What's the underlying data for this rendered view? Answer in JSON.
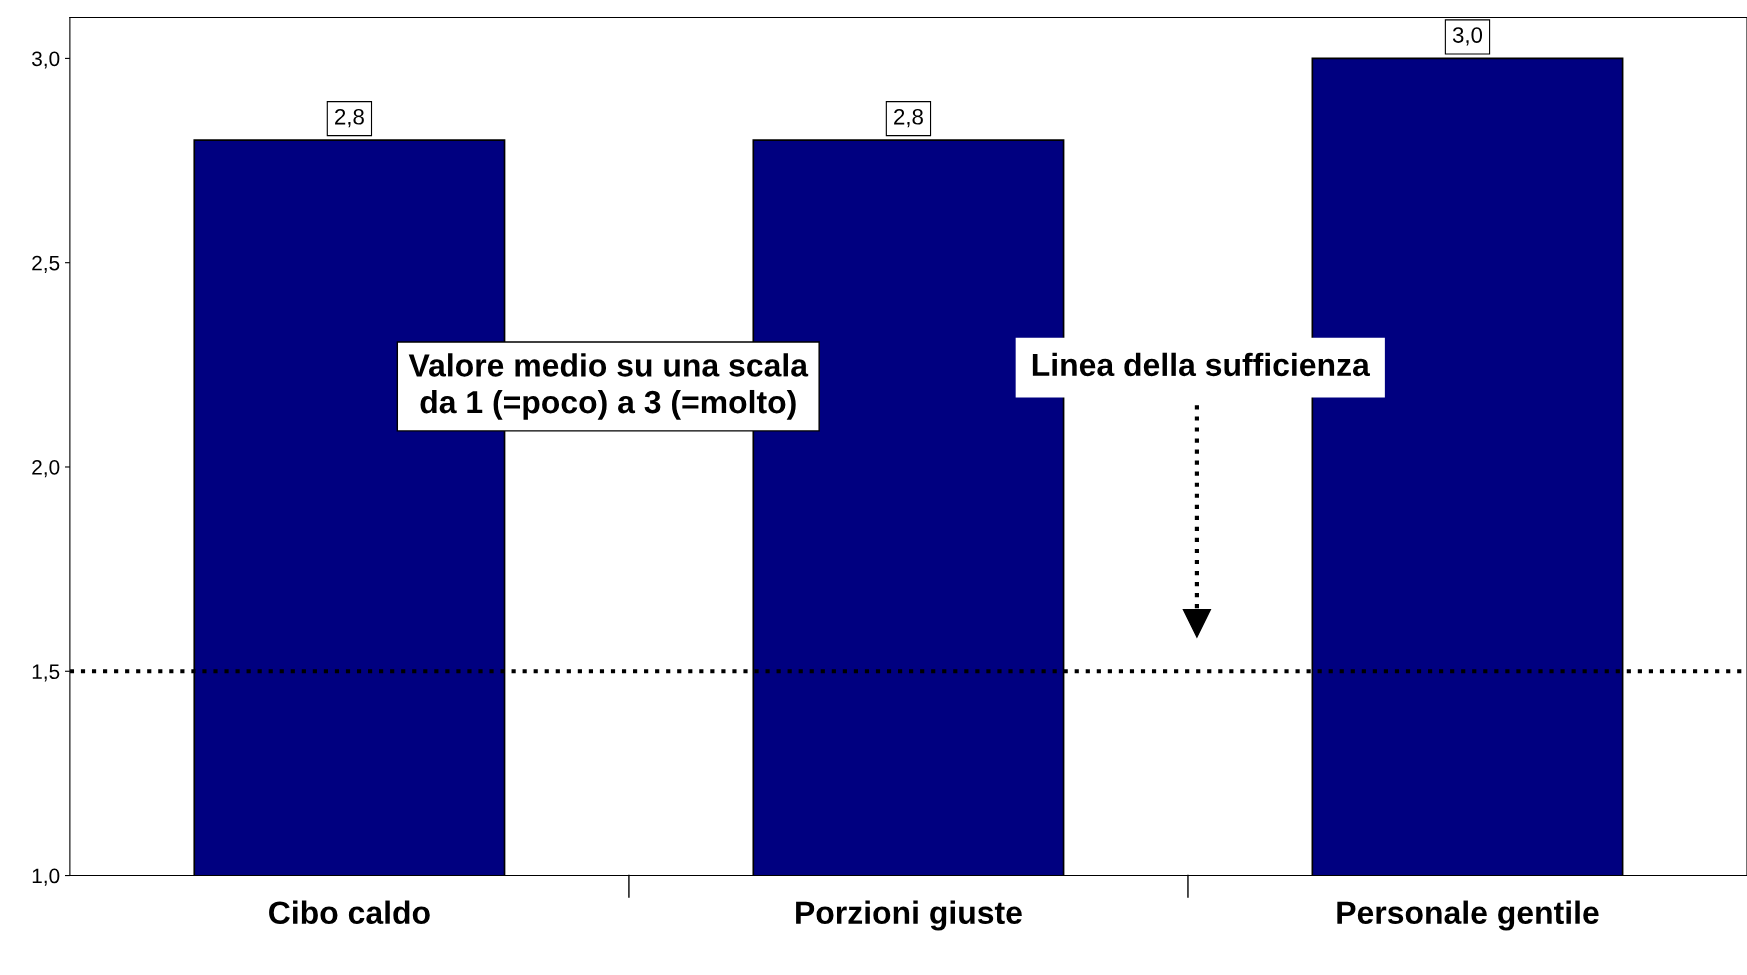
{
  "chart_data": {
    "type": "bar",
    "categories": [
      "Cibo caldo",
      "Porzioni giuste",
      "Personale gentile"
    ],
    "values": [
      2.8,
      2.8,
      3.0
    ],
    "value_labels": [
      "2,8",
      "2,8",
      "3,0"
    ],
    "color": "#000080",
    "ylim": [
      1.0,
      3.1
    ],
    "yticks": [
      {
        "value": 1.0,
        "label": "1,0"
      },
      {
        "value": 1.5,
        "label": "1,5"
      },
      {
        "value": 2.0,
        "label": "2,0"
      },
      {
        "value": 2.5,
        "label": "2,5"
      },
      {
        "value": 3.0,
        "label": "3,0"
      }
    ],
    "ref_lines": [
      {
        "axis": "y",
        "value": 1.5,
        "label": "Linea della sufficienza",
        "color": "#000000",
        "line_style": "dotted"
      }
    ],
    "annotations": [
      "Valore medio su una scala\nda 1 (=poco) a 3 (=molto)"
    ],
    "grid": false
  }
}
